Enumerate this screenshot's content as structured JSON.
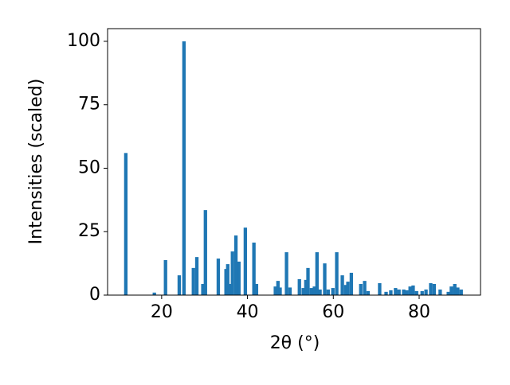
{
  "chart_data": {
    "type": "bar",
    "color": "#1f77b4",
    "x_label": "2θ (°)",
    "y_label": "Intensities (scaled)",
    "xlim": [
      7.4,
      94.3
    ],
    "ylim": [
      0,
      105
    ],
    "xticks": [
      20,
      40,
      60,
      80
    ],
    "yticks": [
      0,
      25,
      50,
      75,
      100
    ],
    "x": [
      11.65,
      18.3,
      20.9,
      24.1,
      25.2,
      27.4,
      28.2,
      29.6,
      30.2,
      33.2,
      35.0,
      35.4,
      36.0,
      36.5,
      37.3,
      38.0,
      39.5,
      41.5,
      42.1,
      46.5,
      47.1,
      47.6,
      49.1,
      49.9,
      52.1,
      53.0,
      53.6,
      54.1,
      54.9,
      55.6,
      56.2,
      56.9,
      58.0,
      58.8,
      59.9,
      60.8,
      62.1,
      62.9,
      63.4,
      64.2,
      66.4,
      67.3,
      68.1,
      70.8,
      72.3,
      73.4,
      74.5,
      75.3,
      76.4,
      77.1,
      77.9,
      78.6,
      79.4,
      80.7,
      81.6,
      82.7,
      83.5,
      84.9,
      86.8,
      87.5,
      88.3,
      89.0,
      89.8
    ],
    "values": [
      56,
      1,
      13.8,
      7.8,
      100,
      10.7,
      15,
      4.4,
      33.5,
      14.4,
      10.3,
      12.2,
      4.4,
      17.2,
      23.5,
      13.2,
      26.6,
      20.7,
      4.4,
      3.4,
      5.6,
      3,
      16.9,
      3,
      6.3,
      2.8,
      6,
      10.7,
      2.8,
      3.4,
      16.9,
      2.2,
      12.5,
      2.2,
      2.8,
      16.9,
      7.8,
      4,
      5.3,
      8.8,
      4.4,
      5.6,
      1.6,
      4.7,
      1.3,
      1.9,
      2.8,
      2.2,
      2.2,
      1.9,
      3.4,
      3.8,
      1.6,
      1.6,
      2.2,
      4.7,
      4.4,
      2.2,
      1.3,
      3.4,
      4.4,
      3,
      2.2
    ]
  }
}
